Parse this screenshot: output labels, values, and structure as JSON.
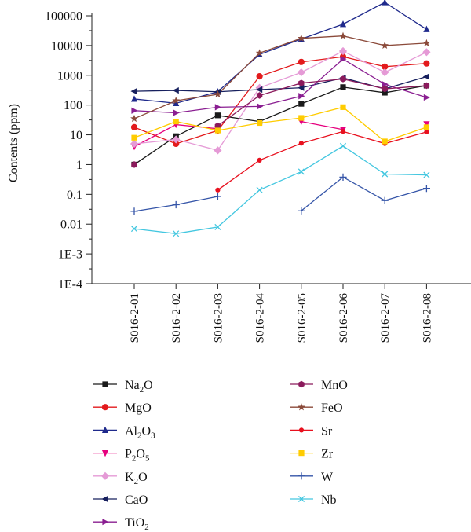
{
  "chart_data": {
    "type": "line",
    "ylabel": "Contents (ppm)",
    "xlabel": "",
    "y_scale": "log",
    "ylim": [
      0.0001,
      100000
    ],
    "y_ticks": [
      {
        "value": 100000,
        "label": "100000"
      },
      {
        "value": 10000,
        "label": "10000"
      },
      {
        "value": 1000,
        "label": "1000"
      },
      {
        "value": 100,
        "label": "100"
      },
      {
        "value": 10,
        "label": "10"
      },
      {
        "value": 1,
        "label": "1"
      },
      {
        "value": 0.1,
        "label": "0.1"
      },
      {
        "value": 0.01,
        "label": "0.01"
      },
      {
        "value": 0.001,
        "label": "1E-3"
      },
      {
        "value": 0.0001,
        "label": "1E-4"
      }
    ],
    "categories": [
      "S016-2-01",
      "S016-2-02",
      "S016-2-03",
      "S016-2-04",
      "S016-2-05",
      "S016-2-06",
      "S016-2-07",
      "S016-2-08"
    ],
    "grid": false,
    "legend_position": "bottom",
    "series": [
      {
        "name": "Na2O",
        "label_main": "Na",
        "label_sub1": "2",
        "label_mid": "O",
        "label_sub2": "",
        "marker": "square",
        "color": "#1a1a1a",
        "values": [
          1,
          9,
          45,
          28,
          110,
          400,
          260,
          450
        ]
      },
      {
        "name": "MgO",
        "label_main": "MgO",
        "label_sub1": "",
        "label_mid": "",
        "label_sub2": "",
        "marker": "circle",
        "color": "#e31a1c",
        "values": [
          18,
          5,
          14,
          920,
          2800,
          4200,
          1950,
          2500
        ]
      },
      {
        "name": "Al2O3",
        "label_main": "Al",
        "label_sub1": "2",
        "label_mid": "O",
        "label_sub2": "3",
        "marker": "triangle-up",
        "color": "#1f2a8c",
        "values": [
          160,
          115,
          280,
          5000,
          16500,
          52000,
          280000,
          35000
        ]
      },
      {
        "name": "P2O5",
        "label_main": "P",
        "label_sub1": "2",
        "label_mid": "O",
        "label_sub2": "5",
        "marker": "triangle-down",
        "color": "#e6007e",
        "values": [
          4,
          22,
          16,
          null,
          28,
          15,
          null,
          23
        ]
      },
      {
        "name": "K2O",
        "label_main": "K",
        "label_sub1": "2",
        "label_mid": "O",
        "label_sub2": "",
        "marker": "diamond",
        "color": "#e59ad6",
        "values": [
          5,
          7,
          3,
          380,
          1250,
          6500,
          1250,
          6000
        ]
      },
      {
        "name": "CaO",
        "label_main": "CaO",
        "label_sub1": "",
        "label_mid": "",
        "label_sub2": "",
        "marker": "triangle-left",
        "color": "#17205e",
        "values": [
          290,
          310,
          280,
          330,
          380,
          820,
          350,
          900
        ]
      },
      {
        "name": "TiO2",
        "label_main": "TiO",
        "label_sub1": "2",
        "label_mid": "",
        "label_sub2": "",
        "marker": "triangle-right",
        "color": "#8a1e91",
        "values": [
          65,
          55,
          85,
          90,
          200,
          3500,
          500,
          180
        ]
      },
      {
        "name": "MnO",
        "label_main": "MnO",
        "label_sub1": "",
        "label_mid": "",
        "label_sub2": "",
        "marker": "hexagon",
        "color": "#8b1a5c",
        "values": [
          1,
          null,
          20,
          210,
          550,
          750,
          350,
          450
        ]
      },
      {
        "name": "FeO",
        "label_main": "FeO",
        "label_sub1": "",
        "label_mid": "",
        "label_sub2": "",
        "marker": "star",
        "color": "#8b4a3a",
        "values": [
          35,
          140,
          230,
          5600,
          17500,
          21000,
          10000,
          12000
        ]
      },
      {
        "name": "Sr",
        "label_main": "Sr",
        "label_sub1": "",
        "label_mid": "",
        "label_sub2": "",
        "marker": "smallcircle",
        "color": "#e8101e",
        "values": [
          null,
          null,
          0.14,
          1.4,
          5.2,
          13,
          5.1,
          12.5
        ]
      },
      {
        "name": "Zr",
        "label_main": "Zr",
        "label_sub1": "",
        "label_mid": "",
        "label_sub2": "",
        "marker": "square",
        "color": "#ffcc00",
        "values": [
          8,
          28,
          14,
          25,
          37,
          85,
          6,
          18
        ]
      },
      {
        "name": "W",
        "label_main": "W",
        "label_sub1": "",
        "label_mid": "",
        "label_sub2": "",
        "marker": "plus",
        "color": "#3555a8",
        "values": [
          0.027,
          0.045,
          0.085,
          null,
          0.028,
          0.38,
          0.062,
          0.16
        ]
      },
      {
        "name": "Nb",
        "label_main": "Nb",
        "label_sub1": "",
        "label_mid": "",
        "label_sub2": "",
        "marker": "cross",
        "color": "#44c7e0",
        "values": [
          0.007,
          0.0048,
          0.008,
          0.14,
          0.58,
          4.2,
          0.48,
          0.45
        ]
      }
    ]
  }
}
